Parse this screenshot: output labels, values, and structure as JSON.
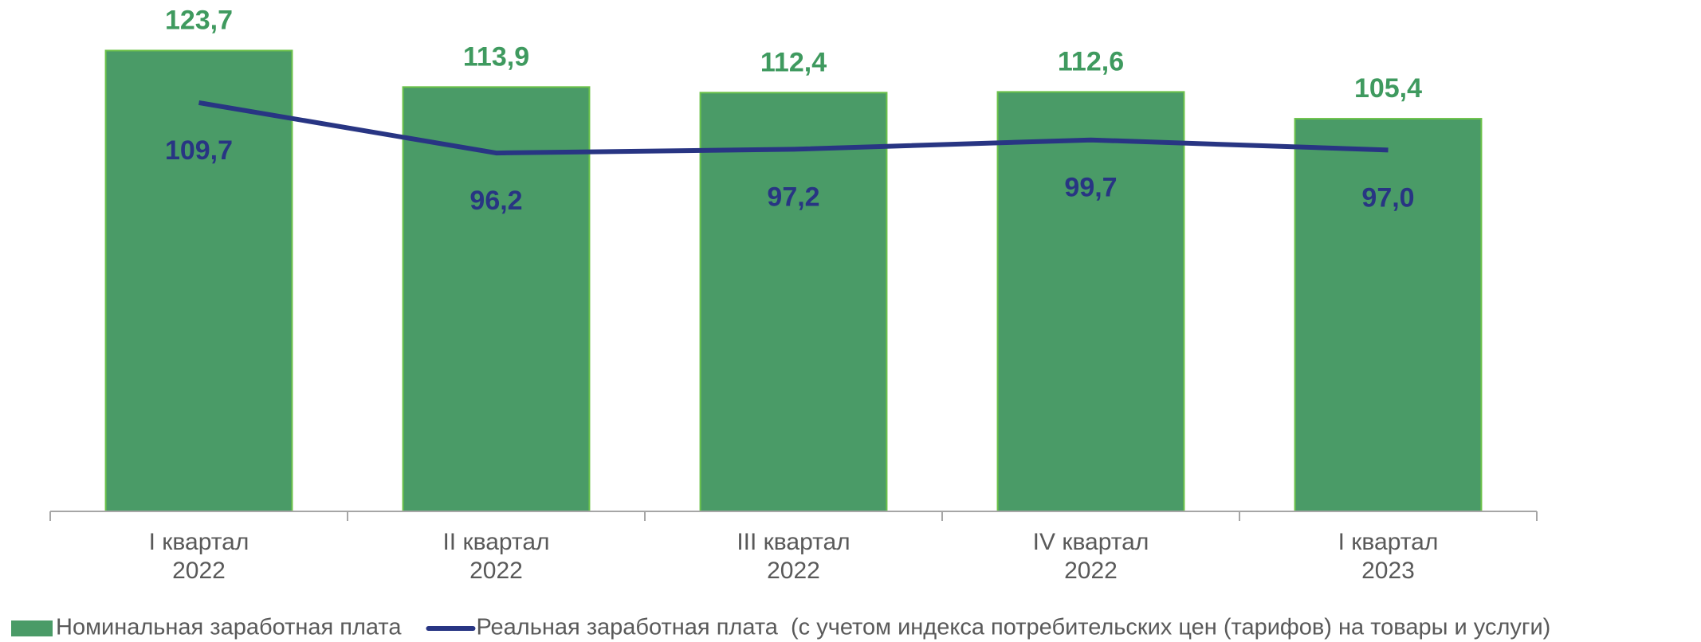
{
  "chart_data": {
    "type": "bar_line",
    "categories": [
      [
        "I квартал",
        "2022"
      ],
      [
        "II квартал",
        "2022"
      ],
      [
        "III квартал",
        "2022"
      ],
      [
        "IV квартал",
        "2022"
      ],
      [
        "I квартал",
        "2023"
      ]
    ],
    "series": [
      {
        "name": "Номинальная заработная плата",
        "type": "bar",
        "color": "#4a9b67",
        "label_color": "#3f9a5f",
        "values": [
          123.7,
          113.9,
          112.4,
          112.6,
          105.4
        ],
        "value_labels": [
          "123,7",
          "113,9",
          "112,4",
          "112,6",
          "105,4"
        ]
      },
      {
        "name": "Реальная заработная плата  (с учетом индекса потребительских цен (тарифов) на товары и услуги)",
        "type": "line",
        "color": "#283583",
        "label_color": "#283583",
        "values": [
          109.7,
          96.2,
          97.2,
          99.7,
          97.0
        ],
        "value_labels": [
          "109,7",
          "96,2",
          "97,2",
          "99,7",
          "97,0"
        ]
      }
    ],
    "ylim": [
      0,
      130
    ],
    "legend": "bottom-left"
  }
}
